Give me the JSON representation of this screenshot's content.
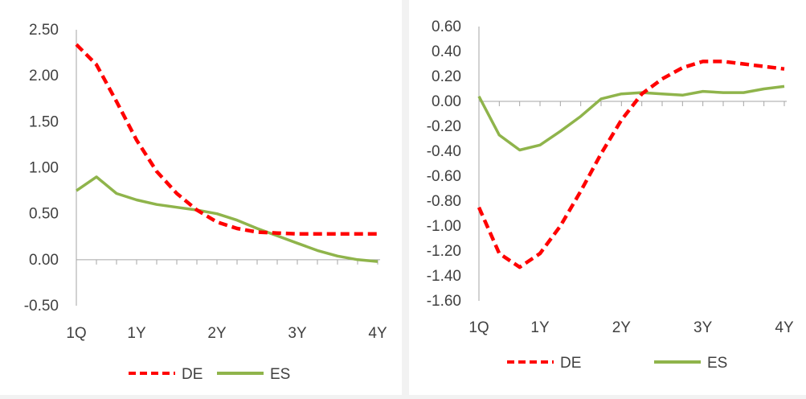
{
  "colors": {
    "DE": "#ff0000",
    "ES": "#8fb44b",
    "axis": "#a6a6a6",
    "text": "#404040"
  },
  "chart_data": [
    {
      "type": "line",
      "title": "",
      "xlabel": "",
      "ylabel": "",
      "ylim": [
        -0.5,
        2.5
      ],
      "yticks": [
        "2.50",
        "2.00",
        "1.50",
        "1.00",
        "0.50",
        "0.00",
        "-0.50"
      ],
      "ytick_values": [
        2.5,
        2.0,
        1.5,
        1.0,
        0.5,
        0.0,
        -0.5
      ],
      "xticks": [
        "1Q",
        "1Y",
        "2Y",
        "3Y",
        "4Y"
      ],
      "xtick_index": [
        0,
        3,
        7,
        11,
        15
      ],
      "legend": "bottom",
      "series": [
        {
          "name": "DE",
          "style": "dashed",
          "values": [
            2.34,
            2.12,
            1.72,
            1.3,
            0.96,
            0.72,
            0.54,
            0.41,
            0.34,
            0.3,
            0.29,
            0.28,
            0.28,
            0.28,
            0.28,
            0.28
          ]
        },
        {
          "name": "ES",
          "style": "solid",
          "values": [
            0.75,
            0.9,
            0.72,
            0.65,
            0.6,
            0.57,
            0.54,
            0.5,
            0.43,
            0.34,
            0.26,
            0.18,
            0.1,
            0.04,
            0.0,
            -0.02
          ]
        }
      ]
    },
    {
      "type": "line",
      "title": "",
      "xlabel": "",
      "ylabel": "",
      "ylim": [
        -1.6,
        0.6
      ],
      "yticks": [
        "0.60",
        "0.40",
        "0.20",
        "0.00",
        "-0.20",
        "-0.40",
        "-0.60",
        "-0.80",
        "-1.00",
        "-1.20",
        "-1.40",
        "-1.60"
      ],
      "ytick_values": [
        0.6,
        0.4,
        0.2,
        0.0,
        -0.2,
        -0.4,
        -0.6,
        -0.8,
        -1.0,
        -1.2,
        -1.4,
        -1.6
      ],
      "xticks": [
        "1Q",
        "1Y",
        "2Y",
        "3Y",
        "4Y"
      ],
      "xtick_index": [
        0,
        3,
        7,
        11,
        15
      ],
      "legend": "bottom",
      "series": [
        {
          "name": "DE",
          "style": "dashed",
          "values": [
            -0.85,
            -1.22,
            -1.33,
            -1.22,
            -1.0,
            -0.72,
            -0.42,
            -0.15,
            0.06,
            0.18,
            0.27,
            0.32,
            0.32,
            0.3,
            0.28,
            0.26
          ]
        },
        {
          "name": "ES",
          "style": "solid",
          "values": [
            0.04,
            -0.27,
            -0.39,
            -0.35,
            -0.24,
            -0.12,
            0.02,
            0.06,
            0.07,
            0.06,
            0.05,
            0.08,
            0.07,
            0.07,
            0.1,
            0.12
          ]
        }
      ]
    }
  ]
}
